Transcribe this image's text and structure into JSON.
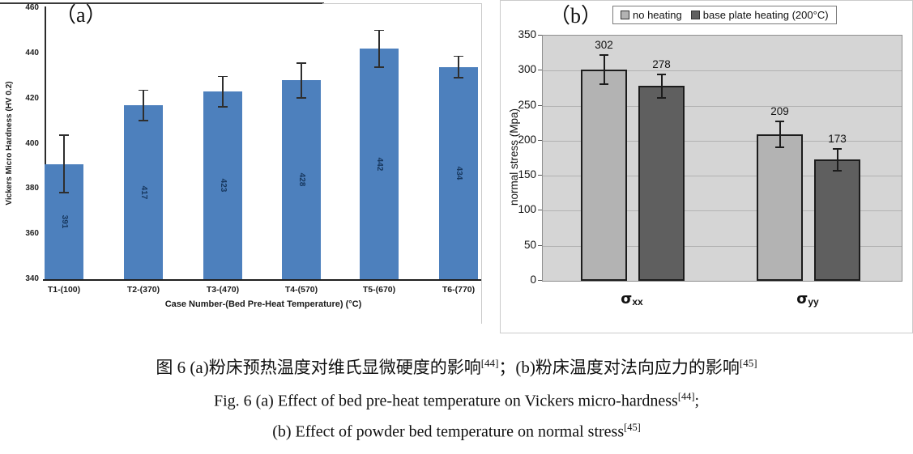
{
  "figure": {
    "panel_a_label": "（a）",
    "panel_b_label": "（b）"
  },
  "chart_data": [
    {
      "type": "bar",
      "panel": "a",
      "xlabel": "Case Number-(Bed Pre-Heat Temperature) (°C)",
      "ylabel": "Vickers Micro Hardness (HV 0.2)",
      "ylim": [
        340,
        460
      ],
      "yticks": [
        340,
        360,
        380,
        400,
        420,
        440,
        460
      ],
      "categories": [
        "T1-(100)",
        "T2-(370)",
        "T3-(470)",
        "T4-(570)",
        "T5-(670)",
        "T6-(770)"
      ],
      "values": [
        391,
        417,
        423,
        428,
        442,
        434
      ],
      "error_bars": [
        13,
        7,
        7,
        8,
        8.5,
        5
      ],
      "bar_color": "#4d80bd",
      "value_label_color": "#17375e",
      "grid": false,
      "legend": null
    },
    {
      "type": "bar",
      "panel": "b",
      "xlabel": "",
      "ylabel": "normal stress (Mpa)",
      "ylim": [
        0,
        350
      ],
      "yticks": [
        0,
        50,
        100,
        150,
        200,
        250,
        300,
        350
      ],
      "categories": [
        "σxx",
        "σyy"
      ],
      "categories_rich": [
        {
          "base": "σ",
          "sub": "xx"
        },
        {
          "base": "σ",
          "sub": "yy"
        }
      ],
      "series": [
        {
          "name": "no heating",
          "values": [
            302,
            209
          ],
          "errors": [
            22,
            20
          ],
          "color": "#b3b3b3"
        },
        {
          "name": "base plate heating (200°C)",
          "values": [
            278,
            173
          ],
          "errors": [
            18,
            17
          ],
          "color": "#5f5f5f"
        }
      ],
      "plot_bg": "#d5d5d5",
      "grid": true,
      "legend_position": "top"
    }
  ],
  "caption": {
    "zh": [
      "图 6 (a)粉床预热温度对维氏显微硬度的影响",
      "[44]",
      "；(b)粉床温度对法向应力的影响",
      "[45]"
    ],
    "en1": [
      "Fig. 6 (a) Effect of bed pre-heat temperature on Vickers micro-hardness",
      "[44]",
      ";"
    ],
    "en2": [
      "(b) Effect of powder bed temperature on normal stress",
      "[45]"
    ]
  }
}
